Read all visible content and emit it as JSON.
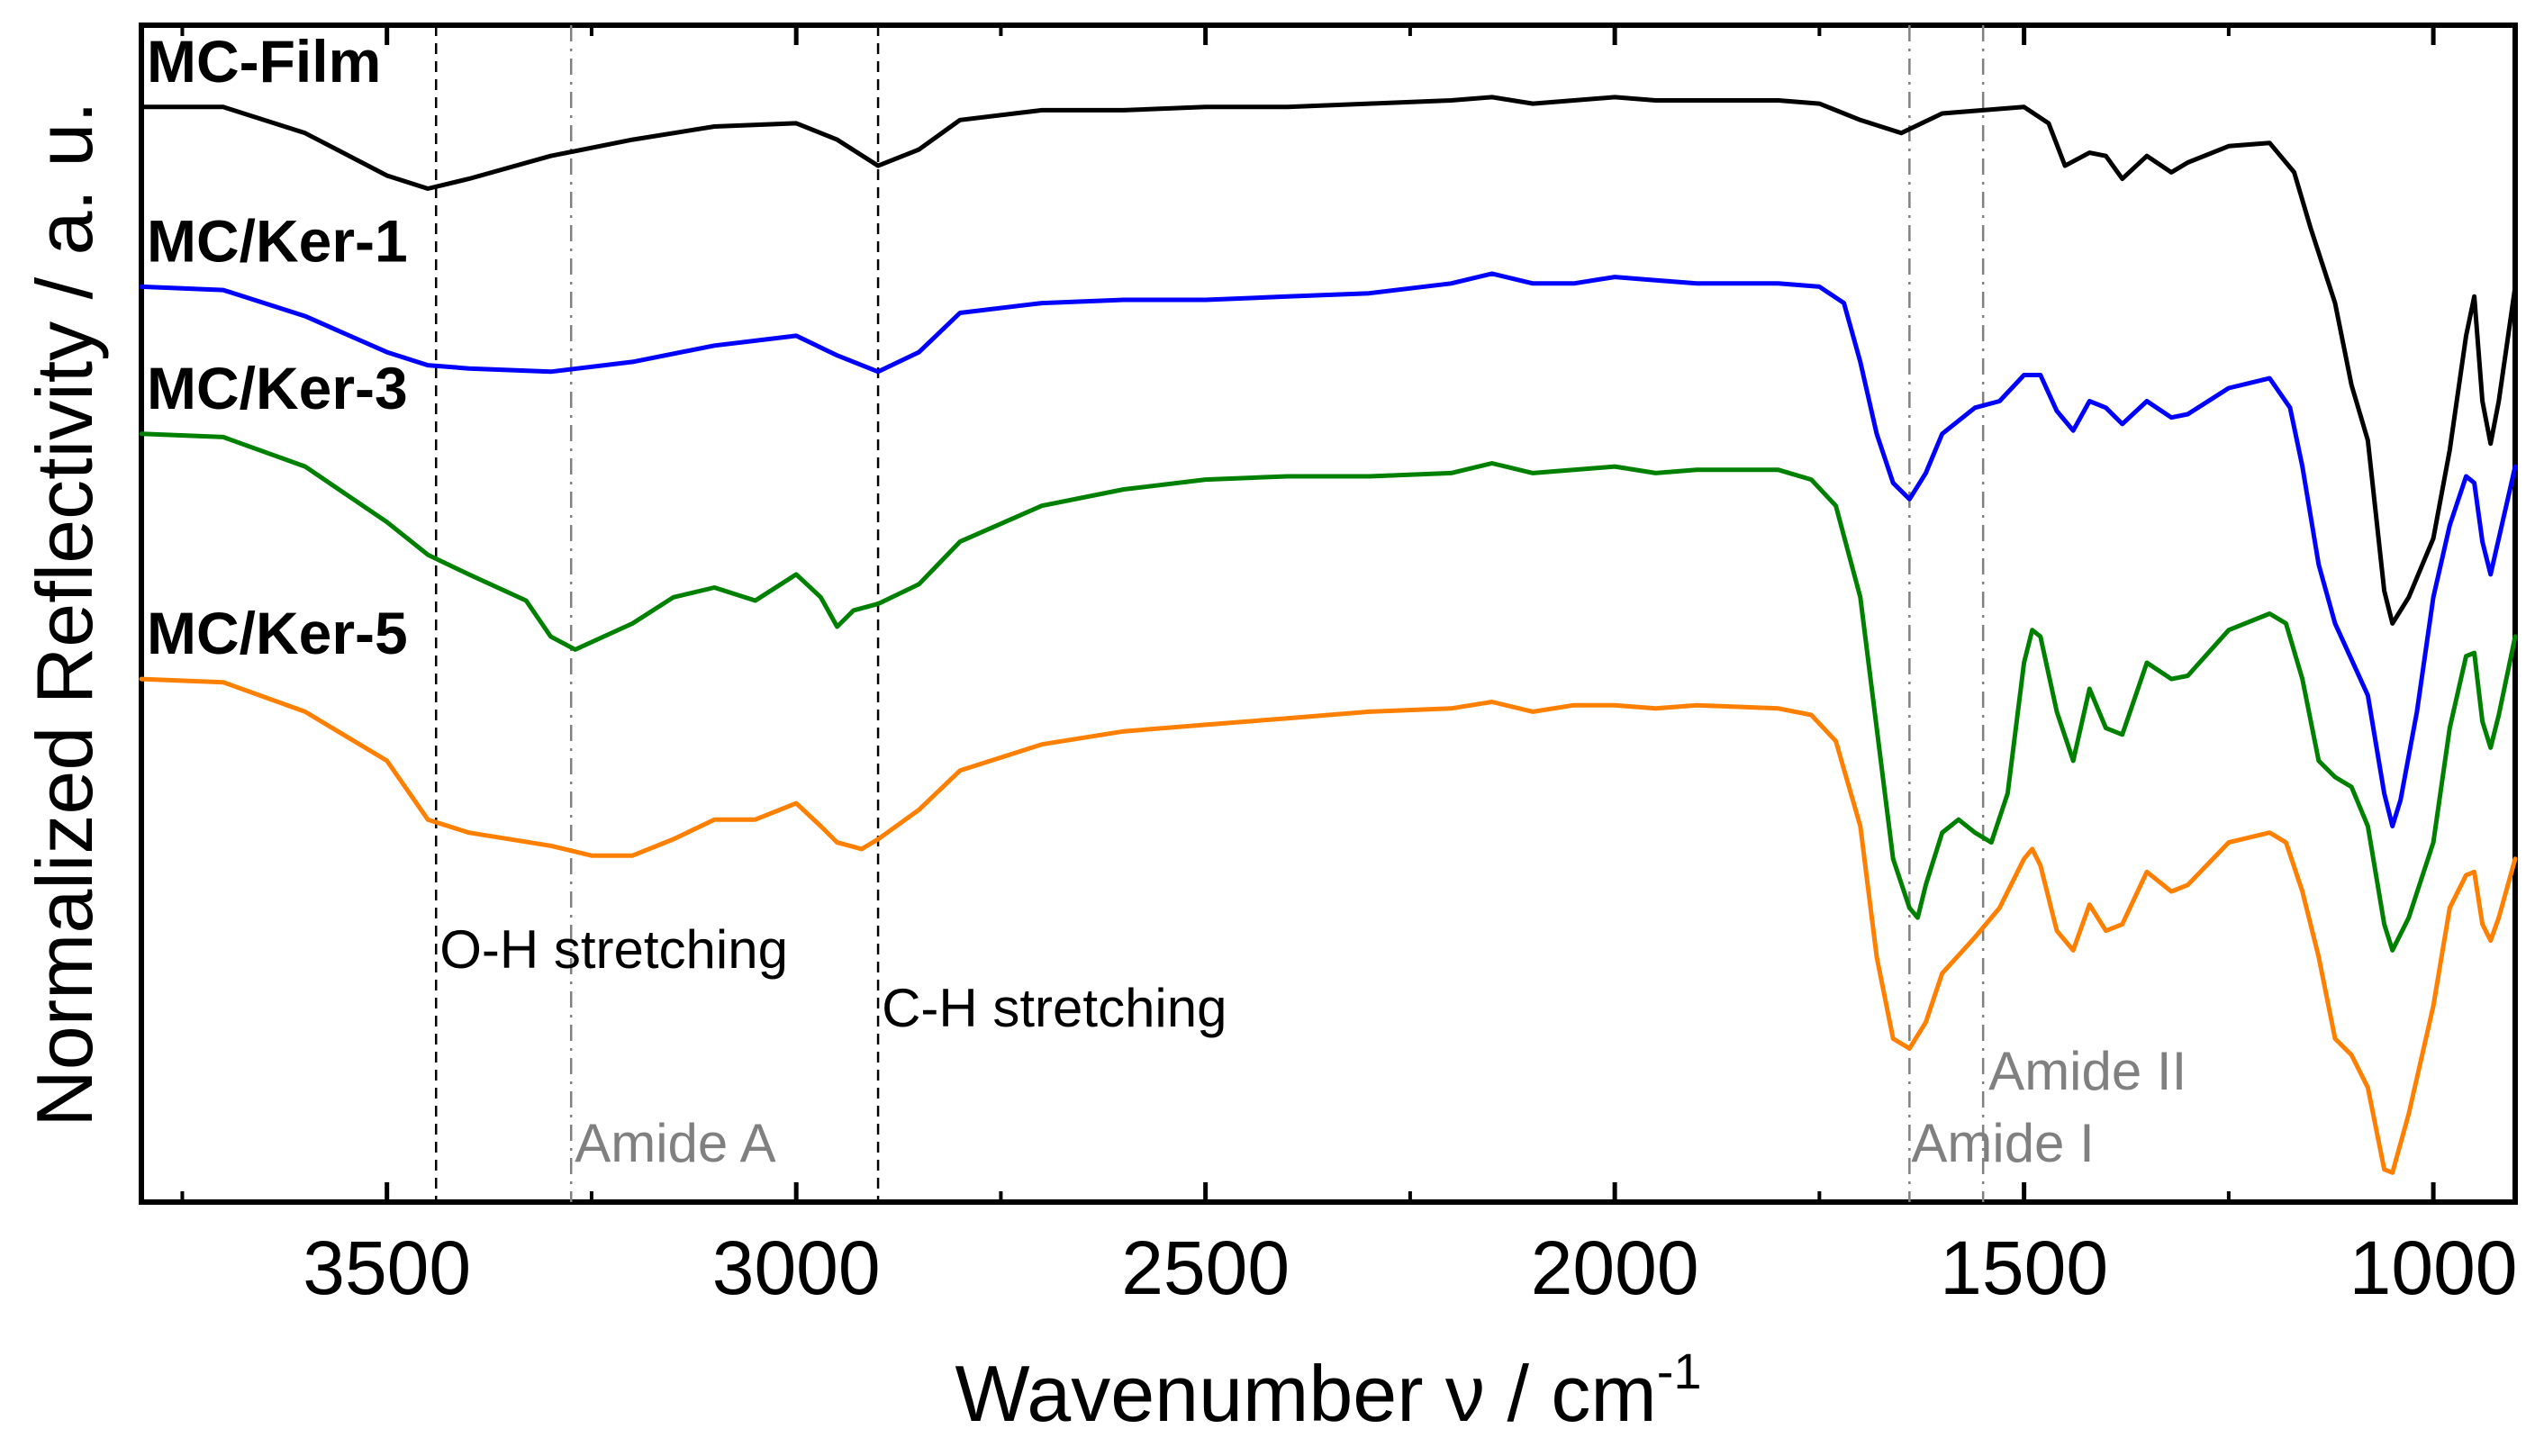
{
  "chart_data": {
    "type": "line",
    "title": "",
    "xlabel": "Wavenumber",
    "xlabel_symbol": "ν",
    "xlabel_unit": "cm",
    "xlabel_exponent": "-1",
    "ylabel": "Normalized Reflectivity / a. u.",
    "xlim": [
      3800,
      900
    ],
    "ylim": [
      -0.05,
      3.55
    ],
    "x_ticks": [
      3500,
      3000,
      2500,
      2000,
      1500,
      1000
    ],
    "x_tick_labels": [
      "3500",
      "3000",
      "2500",
      "2000",
      "1500",
      "1000"
    ],
    "y_ticks_shown": false,
    "grid": false,
    "series": [
      {
        "name": "MC-Film",
        "color": "#000000",
        "points": [
          [
            3800,
            3.3
          ],
          [
            3700,
            3.3
          ],
          [
            3600,
            3.22
          ],
          [
            3500,
            3.09
          ],
          [
            3450,
            3.05
          ],
          [
            3400,
            3.08
          ],
          [
            3300,
            3.15
          ],
          [
            3200,
            3.2
          ],
          [
            3100,
            3.24
          ],
          [
            3000,
            3.25
          ],
          [
            2950,
            3.2
          ],
          [
            2900,
            3.12
          ],
          [
            2850,
            3.17
          ],
          [
            2800,
            3.26
          ],
          [
            2700,
            3.29
          ],
          [
            2600,
            3.29
          ],
          [
            2500,
            3.3
          ],
          [
            2400,
            3.3
          ],
          [
            2300,
            3.31
          ],
          [
            2200,
            3.32
          ],
          [
            2150,
            3.33
          ],
          [
            2100,
            3.31
          ],
          [
            2050,
            3.32
          ],
          [
            2000,
            3.33
          ],
          [
            1950,
            3.32
          ],
          [
            1900,
            3.32
          ],
          [
            1800,
            3.32
          ],
          [
            1750,
            3.31
          ],
          [
            1700,
            3.26
          ],
          [
            1650,
            3.22
          ],
          [
            1600,
            3.28
          ],
          [
            1550,
            3.29
          ],
          [
            1500,
            3.3
          ],
          [
            1470,
            3.25
          ],
          [
            1450,
            3.12
          ],
          [
            1420,
            3.16
          ],
          [
            1400,
            3.15
          ],
          [
            1380,
            3.08
          ],
          [
            1350,
            3.15
          ],
          [
            1320,
            3.1
          ],
          [
            1300,
            3.13
          ],
          [
            1250,
            3.18
          ],
          [
            1200,
            3.19
          ],
          [
            1170,
            3.1
          ],
          [
            1150,
            2.93
          ],
          [
            1120,
            2.7
          ],
          [
            1100,
            2.45
          ],
          [
            1080,
            2.28
          ],
          [
            1060,
            1.82
          ],
          [
            1050,
            1.72
          ],
          [
            1030,
            1.8
          ],
          [
            1000,
            1.98
          ],
          [
            980,
            2.25
          ],
          [
            960,
            2.6
          ],
          [
            950,
            2.72
          ],
          [
            940,
            2.4
          ],
          [
            930,
            2.27
          ],
          [
            920,
            2.4
          ],
          [
            900,
            2.75
          ]
        ]
      },
      {
        "name": "MC/Ker-1",
        "color": "#0000ff",
        "points": [
          [
            3800,
            2.75
          ],
          [
            3700,
            2.74
          ],
          [
            3600,
            2.66
          ],
          [
            3500,
            2.55
          ],
          [
            3450,
            2.51
          ],
          [
            3400,
            2.5
          ],
          [
            3300,
            2.49
          ],
          [
            3200,
            2.52
          ],
          [
            3100,
            2.57
          ],
          [
            3000,
            2.6
          ],
          [
            2950,
            2.54
          ],
          [
            2900,
            2.49
          ],
          [
            2850,
            2.55
          ],
          [
            2800,
            2.67
          ],
          [
            2700,
            2.7
          ],
          [
            2600,
            2.71
          ],
          [
            2500,
            2.71
          ],
          [
            2400,
            2.72
          ],
          [
            2300,
            2.73
          ],
          [
            2200,
            2.76
          ],
          [
            2150,
            2.79
          ],
          [
            2100,
            2.76
          ],
          [
            2050,
            2.76
          ],
          [
            2000,
            2.78
          ],
          [
            1950,
            2.77
          ],
          [
            1900,
            2.76
          ],
          [
            1800,
            2.76
          ],
          [
            1750,
            2.75
          ],
          [
            1720,
            2.7
          ],
          [
            1700,
            2.52
          ],
          [
            1680,
            2.3
          ],
          [
            1660,
            2.15
          ],
          [
            1640,
            2.1
          ],
          [
            1620,
            2.18
          ],
          [
            1600,
            2.3
          ],
          [
            1560,
            2.38
          ],
          [
            1530,
            2.4
          ],
          [
            1500,
            2.48
          ],
          [
            1480,
            2.48
          ],
          [
            1460,
            2.37
          ],
          [
            1440,
            2.31
          ],
          [
            1420,
            2.4
          ],
          [
            1400,
            2.38
          ],
          [
            1380,
            2.33
          ],
          [
            1350,
            2.4
          ],
          [
            1320,
            2.35
          ],
          [
            1300,
            2.36
          ],
          [
            1250,
            2.44
          ],
          [
            1200,
            2.47
          ],
          [
            1175,
            2.38
          ],
          [
            1160,
            2.2
          ],
          [
            1140,
            1.9
          ],
          [
            1120,
            1.72
          ],
          [
            1100,
            1.61
          ],
          [
            1080,
            1.5
          ],
          [
            1060,
            1.2
          ],
          [
            1050,
            1.1
          ],
          [
            1040,
            1.18
          ],
          [
            1020,
            1.45
          ],
          [
            1000,
            1.8
          ],
          [
            980,
            2.02
          ],
          [
            960,
            2.17
          ],
          [
            950,
            2.15
          ],
          [
            940,
            1.97
          ],
          [
            930,
            1.87
          ],
          [
            920,
            1.98
          ],
          [
            900,
            2.2
          ]
        ]
      },
      {
        "name": "MC/Ker-3",
        "color": "#008000",
        "points": [
          [
            3800,
            2.3
          ],
          [
            3700,
            2.29
          ],
          [
            3600,
            2.2
          ],
          [
            3500,
            2.03
          ],
          [
            3450,
            1.93
          ],
          [
            3400,
            1.87
          ],
          [
            3330,
            1.79
          ],
          [
            3300,
            1.68
          ],
          [
            3270,
            1.64
          ],
          [
            3200,
            1.72
          ],
          [
            3150,
            1.8
          ],
          [
            3100,
            1.83
          ],
          [
            3050,
            1.79
          ],
          [
            3000,
            1.87
          ],
          [
            2970,
            1.8
          ],
          [
            2950,
            1.71
          ],
          [
            2930,
            1.76
          ],
          [
            2900,
            1.78
          ],
          [
            2850,
            1.84
          ],
          [
            2800,
            1.97
          ],
          [
            2700,
            2.08
          ],
          [
            2600,
            2.13
          ],
          [
            2500,
            2.16
          ],
          [
            2400,
            2.17
          ],
          [
            2300,
            2.17
          ],
          [
            2200,
            2.18
          ],
          [
            2150,
            2.21
          ],
          [
            2100,
            2.18
          ],
          [
            2050,
            2.19
          ],
          [
            2000,
            2.2
          ],
          [
            1950,
            2.18
          ],
          [
            1900,
            2.19
          ],
          [
            1800,
            2.19
          ],
          [
            1760,
            2.16
          ],
          [
            1730,
            2.08
          ],
          [
            1700,
            1.8
          ],
          [
            1680,
            1.4
          ],
          [
            1660,
            1.0
          ],
          [
            1640,
            0.85
          ],
          [
            1630,
            0.82
          ],
          [
            1620,
            0.92
          ],
          [
            1600,
            1.08
          ],
          [
            1580,
            1.12
          ],
          [
            1560,
            1.08
          ],
          [
            1540,
            1.05
          ],
          [
            1520,
            1.2
          ],
          [
            1500,
            1.6
          ],
          [
            1490,
            1.7
          ],
          [
            1480,
            1.68
          ],
          [
            1460,
            1.45
          ],
          [
            1440,
            1.3
          ],
          [
            1420,
            1.52
          ],
          [
            1400,
            1.4
          ],
          [
            1380,
            1.38
          ],
          [
            1350,
            1.6
          ],
          [
            1320,
            1.55
          ],
          [
            1300,
            1.56
          ],
          [
            1250,
            1.7
          ],
          [
            1200,
            1.75
          ],
          [
            1180,
            1.72
          ],
          [
            1160,
            1.55
          ],
          [
            1140,
            1.3
          ],
          [
            1120,
            1.25
          ],
          [
            1100,
            1.22
          ],
          [
            1080,
            1.1
          ],
          [
            1060,
            0.8
          ],
          [
            1050,
            0.72
          ],
          [
            1030,
            0.82
          ],
          [
            1000,
            1.05
          ],
          [
            980,
            1.4
          ],
          [
            960,
            1.62
          ],
          [
            950,
            1.63
          ],
          [
            940,
            1.42
          ],
          [
            930,
            1.34
          ],
          [
            920,
            1.44
          ],
          [
            900,
            1.68
          ]
        ]
      },
      {
        "name": "MC/Ker-5",
        "color": "#ff8000",
        "points": [
          [
            3800,
            1.55
          ],
          [
            3700,
            1.54
          ],
          [
            3600,
            1.45
          ],
          [
            3500,
            1.3
          ],
          [
            3450,
            1.12
          ],
          [
            3400,
            1.08
          ],
          [
            3300,
            1.04
          ],
          [
            3250,
            1.01
          ],
          [
            3200,
            1.01
          ],
          [
            3150,
            1.06
          ],
          [
            3100,
            1.12
          ],
          [
            3050,
            1.12
          ],
          [
            3000,
            1.17
          ],
          [
            2970,
            1.1
          ],
          [
            2950,
            1.05
          ],
          [
            2920,
            1.03
          ],
          [
            2900,
            1.06
          ],
          [
            2850,
            1.15
          ],
          [
            2800,
            1.27
          ],
          [
            2700,
            1.35
          ],
          [
            2600,
            1.39
          ],
          [
            2500,
            1.41
          ],
          [
            2400,
            1.43
          ],
          [
            2300,
            1.45
          ],
          [
            2200,
            1.46
          ],
          [
            2150,
            1.48
          ],
          [
            2100,
            1.45
          ],
          [
            2050,
            1.47
          ],
          [
            2000,
            1.47
          ],
          [
            1950,
            1.46
          ],
          [
            1900,
            1.47
          ],
          [
            1800,
            1.46
          ],
          [
            1760,
            1.44
          ],
          [
            1730,
            1.36
          ],
          [
            1700,
            1.1
          ],
          [
            1680,
            0.7
          ],
          [
            1660,
            0.45
          ],
          [
            1640,
            0.42
          ],
          [
            1620,
            0.5
          ],
          [
            1600,
            0.65
          ],
          [
            1560,
            0.76
          ],
          [
            1530,
            0.85
          ],
          [
            1500,
            1.0
          ],
          [
            1490,
            1.03
          ],
          [
            1480,
            0.98
          ],
          [
            1460,
            0.78
          ],
          [
            1440,
            0.72
          ],
          [
            1420,
            0.86
          ],
          [
            1400,
            0.78
          ],
          [
            1380,
            0.8
          ],
          [
            1350,
            0.96
          ],
          [
            1320,
            0.9
          ],
          [
            1300,
            0.92
          ],
          [
            1250,
            1.05
          ],
          [
            1200,
            1.08
          ],
          [
            1180,
            1.05
          ],
          [
            1160,
            0.9
          ],
          [
            1140,
            0.7
          ],
          [
            1120,
            0.45
          ],
          [
            1100,
            0.4
          ],
          [
            1080,
            0.3
          ],
          [
            1060,
            0.05
          ],
          [
            1050,
            0.04
          ],
          [
            1030,
            0.22
          ],
          [
            1000,
            0.55
          ],
          [
            980,
            0.85
          ],
          [
            960,
            0.95
          ],
          [
            950,
            0.96
          ],
          [
            940,
            0.8
          ],
          [
            930,
            0.75
          ],
          [
            920,
            0.82
          ],
          [
            900,
            1.0
          ]
        ]
      }
    ],
    "series_labels": [
      {
        "text": "MC-Film",
        "series": 0
      },
      {
        "text": "MC/Ker-1",
        "series": 1
      },
      {
        "text": "MC/Ker-3",
        "series": 2
      },
      {
        "text": "MC/Ker-5",
        "series": 3
      }
    ],
    "reference_lines": [
      {
        "x": 3440,
        "style": "dashed",
        "color": "#000000"
      },
      {
        "x": 3275,
        "style": "dashdot",
        "color": "#808080"
      },
      {
        "x": 2900,
        "style": "dashed",
        "color": "#000000"
      },
      {
        "x": 1640,
        "style": "dashdot",
        "color": "#808080"
      },
      {
        "x": 1550,
        "style": "dashdot",
        "color": "#808080"
      }
    ],
    "annotations": [
      {
        "text": "O-H stretching",
        "x": 3440,
        "color": "#000000"
      },
      {
        "text": "C-H stretching",
        "x": 2900,
        "color": "#000000"
      },
      {
        "text": "Amide A",
        "x": 3275,
        "color": "#808080"
      },
      {
        "text": "Amide II",
        "x": 1550,
        "color": "#808080"
      },
      {
        "text": "Amide I",
        "x": 1640,
        "color": "#808080"
      }
    ]
  }
}
